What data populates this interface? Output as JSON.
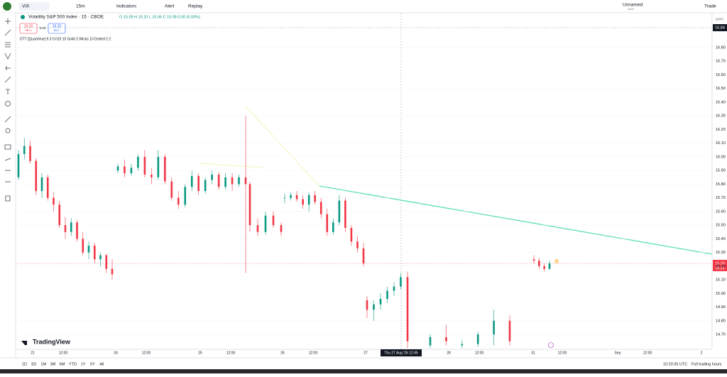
{
  "toolbar": {
    "symbol": "VIX",
    "interval": "15m",
    "indicators": "Indicators",
    "alert": "Alert",
    "replay": "Replay",
    "layout": "Unnamed",
    "save": "Save",
    "trade": "Trade"
  },
  "legend": {
    "title": "Volatility S&P 500 Index · 15 · CBOE",
    "ohlc": "O 15.09 H 15.10 L 15.06 C 15.08 0.00 (0.00%)",
    "sell_price": "15.20",
    "sell": "SELL",
    "spread": "0.00",
    "buy_price": "15.20",
    "buy": "BUY",
    "indicator": "DTT [QuantVue] 9 3 0.015 10 Solid 2 Wicks 10 Dotted 2 2"
  },
  "price_axis": {
    "unit": "point",
    "crosshair": "16.84",
    "current": "15.20",
    "countdown": "09:24",
    "ticks": [
      {
        "value": 14.7,
        "label": "14.70"
      },
      {
        "value": 14.8,
        "label": "14.80"
      },
      {
        "value": 14.9,
        "label": "14.90"
      },
      {
        "value": 15,
        "label": "15.00"
      },
      {
        "value": 15.1,
        "label": "15.10"
      },
      {
        "value": 15.2,
        "label": "15.20"
      },
      {
        "value": 15.3,
        "label": "15.30"
      },
      {
        "value": 15.4,
        "label": "15.40"
      },
      {
        "value": 15.5,
        "label": "15.50"
      },
      {
        "value": 15.6,
        "label": "15.60"
      },
      {
        "value": 15.7,
        "label": "15.70"
      },
      {
        "value": 15.8,
        "label": "15.80"
      },
      {
        "value": 15.9,
        "label": "15.90"
      },
      {
        "value": 16,
        "label": "16.00"
      },
      {
        "value": 16.1,
        "label": "16.10"
      },
      {
        "value": 16.2,
        "label": "16.20"
      },
      {
        "value": 16.3,
        "label": "16.30"
      },
      {
        "value": 16.4,
        "label": "16.40"
      },
      {
        "value": 16.5,
        "label": "16.50"
      },
      {
        "value": 16.6,
        "label": "16.60"
      },
      {
        "value": 16.7,
        "label": "16.70"
      },
      {
        "value": 16.8,
        "label": "16.80"
      }
    ]
  },
  "time_axis": {
    "labels": [
      "21",
      "12:00",
      "24",
      "12:00",
      "25",
      "12:00",
      "26",
      "12:00",
      "27",
      "28",
      "12:00",
      "31",
      "12:00",
      "Sep",
      "12:00",
      "2"
    ],
    "crosshair": "Thu 27 Aug '26  12:45"
  },
  "candles": [
    [
      [
        15.85,
        16.05,
        15.83,
        16.02
      ],
      [
        16.02,
        16.14,
        15.98,
        16.08
      ],
      [
        16.08,
        16.12,
        15.95,
        15.97
      ],
      [
        15.97,
        15.99,
        15.72,
        15.75
      ],
      [
        15.75,
        15.88,
        15.7,
        15.85
      ],
      [
        15.85,
        15.87,
        15.68,
        15.7
      ],
      [
        15.7,
        15.74,
        15.6,
        15.65
      ],
      [
        15.65,
        15.68,
        15.48,
        15.5
      ],
      [
        15.5,
        15.56,
        15.4,
        15.45
      ],
      [
        15.45,
        15.55,
        15.42,
        15.52
      ],
      [
        15.52,
        15.54,
        15.38,
        15.4
      ],
      [
        15.4,
        15.45,
        15.28,
        15.3
      ],
      [
        15.3,
        15.38,
        15.25,
        15.35
      ],
      [
        15.35,
        15.37,
        15.22,
        15.25
      ],
      [
        15.25,
        15.3,
        15.2,
        15.28
      ],
      [
        15.28,
        15.29,
        15.15,
        15.18
      ],
      [
        15.18,
        15.25,
        15.1,
        15.14
      ]
    ],
    [
      [
        15.9,
        15.95,
        15.88,
        15.93
      ],
      [
        15.93,
        15.98,
        15.85,
        15.88
      ],
      [
        15.88,
        15.95,
        15.86,
        15.92
      ],
      [
        15.92,
        16.02,
        15.9,
        16.0
      ],
      [
        16.0,
        16.05,
        15.85,
        15.87
      ],
      [
        15.87,
        15.92,
        15.8,
        15.85
      ],
      [
        15.85,
        16.05,
        15.83,
        16.0
      ],
      [
        16.0,
        16.02,
        15.8,
        15.82
      ],
      [
        15.82,
        15.85,
        15.68,
        15.7
      ],
      [
        15.7,
        15.75,
        15.62,
        15.65
      ],
      [
        15.65,
        15.8,
        15.63,
        15.78
      ],
      [
        15.78,
        15.9,
        15.75,
        15.86
      ],
      [
        15.86,
        15.88,
        15.72,
        15.75
      ],
      [
        15.75,
        15.85,
        15.73,
        15.83
      ],
      [
        15.83,
        15.9,
        15.8,
        15.87
      ],
      [
        15.87,
        15.89,
        15.76,
        15.78
      ],
      [
        15.78,
        15.88,
        15.76,
        15.85
      ],
      [
        15.85,
        15.88,
        15.75,
        15.8
      ],
      [
        15.8,
        15.87,
        15.78,
        15.85
      ],
      [
        15.85,
        16.3,
        15.15,
        15.8
      ]
    ],
    [
      [
        15.8,
        15.82,
        15.45,
        15.5
      ],
      [
        15.5,
        15.55,
        15.42,
        15.45
      ],
      [
        15.45,
        15.6,
        15.43,
        15.57
      ],
      [
        15.57,
        15.6,
        15.48,
        15.5
      ],
      [
        15.5,
        15.52,
        15.42,
        15.45
      ]
    ],
    [
      [
        15.7,
        15.73,
        15.66,
        15.7
      ],
      [
        15.7,
        15.74,
        15.68,
        15.72
      ],
      [
        15.72,
        15.75,
        15.67,
        15.69
      ],
      [
        15.69,
        15.72,
        15.62,
        15.65
      ],
      [
        15.65,
        15.74,
        15.6,
        15.72
      ],
      [
        15.72,
        15.75,
        15.65,
        15.67
      ],
      [
        15.67,
        15.7,
        15.55,
        15.58
      ],
      [
        15.58,
        15.62,
        15.42,
        15.45
      ],
      [
        15.45,
        15.55,
        15.43,
        15.52
      ],
      [
        15.52,
        15.72,
        15.5,
        15.68
      ],
      [
        15.68,
        15.7,
        15.45,
        15.48
      ],
      [
        15.48,
        15.5,
        15.35,
        15.38
      ],
      [
        15.38,
        15.42,
        15.3,
        15.33
      ],
      [
        15.33,
        15.37,
        15.2,
        15.22
      ]
    ],
    [
      [
        14.95,
        14.98,
        14.82,
        14.88
      ],
      [
        14.88,
        14.95,
        14.8,
        14.92
      ],
      [
        14.92,
        15.0,
        14.88,
        14.96
      ],
      [
        14.96,
        15.05,
        14.93,
        15.02
      ],
      [
        15.02,
        15.08,
        14.98,
        15.05
      ],
      [
        15.05,
        15.15,
        15.03,
        15.12
      ],
      [
        15.12,
        15.16,
        14.6,
        14.65
      ]
    ],
    [
      [
        14.62,
        14.7,
        14.6,
        14.68
      ],
      [
        14.68,
        14.77,
        14.62,
        14.65
      ],
      [
        14.62,
        14.66,
        14.6,
        14.63
      ],
      [
        14.63,
        14.72,
        14.61,
        14.7
      ],
      [
        14.7,
        14.88,
        14.62,
        14.8
      ],
      [
        14.8,
        14.84,
        14.62,
        14.65
      ]
    ],
    [
      [
        15.25,
        15.28,
        15.22,
        15.24
      ],
      [
        15.24,
        15.26,
        15.18,
        15.2
      ],
      [
        15.2,
        15.22,
        15.16,
        15.18
      ],
      [
        15.18,
        15.24,
        15.17,
        15.22
      ]
    ]
  ],
  "footer": {
    "logo": "TradingView",
    "ranges": [
      "1D",
      "5D",
      "1M",
      "3M",
      "6M",
      "YTD",
      "1Y",
      "5Y",
      "All"
    ],
    "clock": "10:20:35 UTC",
    "session": "Full trading hours"
  }
}
